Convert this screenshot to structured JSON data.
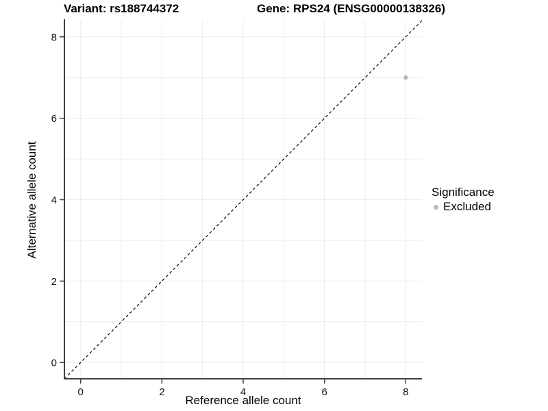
{
  "chart_data": {
    "type": "scatter",
    "title_variant": "Variant: rs188744372",
    "title_gene": "Gene: RPS24 (ENSG00000138326)",
    "xlabel": "Reference allele count",
    "ylabel": "Alternative allele count",
    "xlim": [
      -0.4,
      8.4
    ],
    "ylim": [
      -0.4,
      8.4
    ],
    "xticks": [
      0,
      2,
      4,
      6,
      8
    ],
    "yticks": [
      0,
      2,
      4,
      6,
      8
    ],
    "grid_values": [
      0,
      1,
      2,
      3,
      4,
      5,
      6,
      7,
      8
    ],
    "grid": true,
    "points": [
      {
        "x": 8,
        "y": 7,
        "series": "Excluded"
      }
    ],
    "reference_line": {
      "slope": 1,
      "intercept": 0,
      "style": "dashed",
      "color": "#000000"
    },
    "legend": {
      "title": "Significance",
      "position": "right",
      "items": [
        {
          "label": "Excluded",
          "color": "#b8b8b8",
          "marker": "circle"
        }
      ]
    },
    "colors": {
      "point": "#b8b8b8",
      "grid": "#ebebeb",
      "axis": "#404040",
      "tick_text": "#111111",
      "background": "#ffffff"
    }
  }
}
